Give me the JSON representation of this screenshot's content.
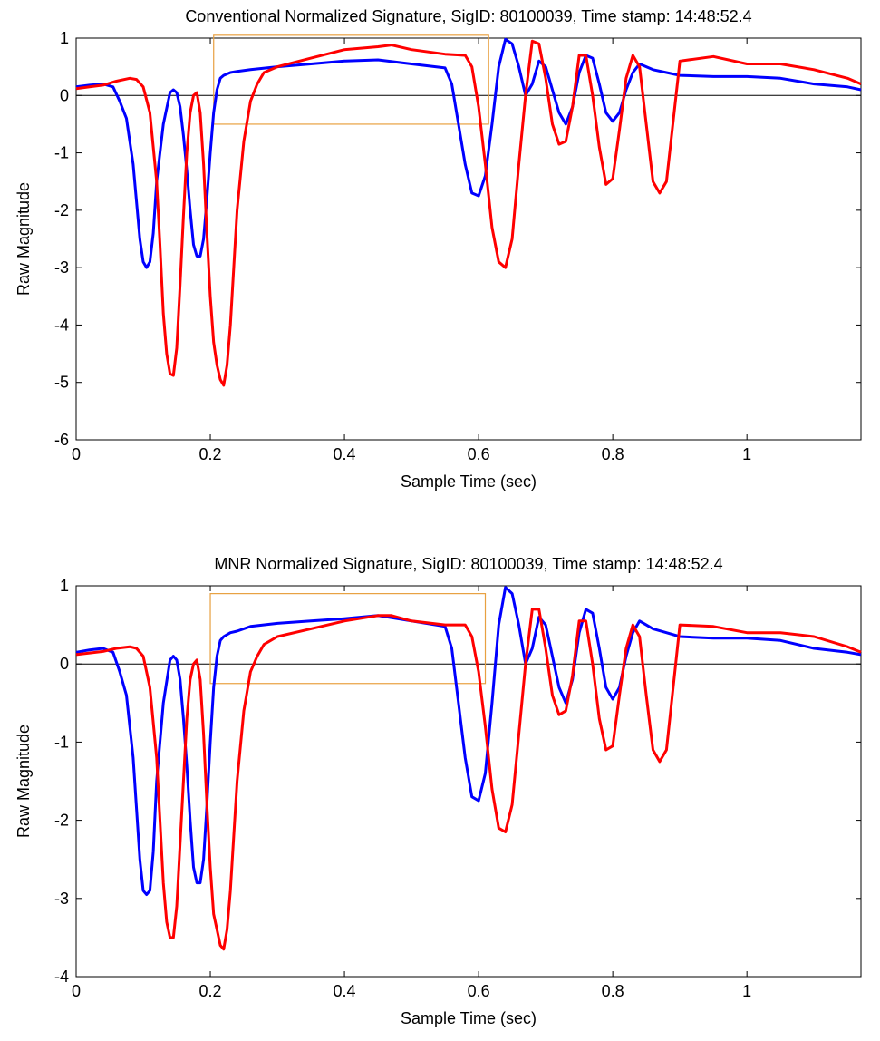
{
  "chart_data": [
    {
      "type": "line",
      "title": "Conventional Normalized Signature, SigID: 80100039, Time stamp: 14:48:52.4",
      "xlabel": "Sample Time (sec)",
      "ylabel": "Raw Magnitude",
      "xlim": [
        0,
        1.17
      ],
      "ylim": [
        -6,
        1
      ],
      "xticks": [
        0,
        0.2,
        0.4,
        0.6,
        0.8,
        1
      ],
      "xtick_labels": [
        "0",
        "0.2",
        "0.4",
        "0.6",
        "0.8",
        "1"
      ],
      "yticks": [
        -6,
        -5,
        -4,
        -3,
        -2,
        -1,
        0,
        1
      ],
      "ytick_labels": [
        "-6",
        "-5",
        "-4",
        "-3",
        "-2",
        "-1",
        "0",
        "1"
      ],
      "zero_line": true,
      "grid": false,
      "highlight_box": {
        "x0": 0.205,
        "x1": 0.615,
        "y0": -0.5,
        "y1": 1.05,
        "color": "#e8a040"
      },
      "series": [
        {
          "color": "#0000ff",
          "x": [
            0,
            0.02,
            0.04,
            0.055,
            0.065,
            0.075,
            0.085,
            0.095,
            0.1,
            0.105,
            0.11,
            0.115,
            0.12,
            0.13,
            0.14,
            0.145,
            0.15,
            0.155,
            0.16,
            0.165,
            0.17,
            0.175,
            0.18,
            0.185,
            0.19,
            0.195,
            0.2,
            0.205,
            0.21,
            0.215,
            0.22,
            0.23,
            0.24,
            0.26,
            0.3,
            0.35,
            0.4,
            0.45,
            0.5,
            0.55,
            0.56,
            0.57,
            0.58,
            0.59,
            0.6,
            0.61,
            0.62,
            0.63,
            0.64,
            0.65,
            0.66,
            0.67,
            0.68,
            0.69,
            0.7,
            0.71,
            0.72,
            0.73,
            0.74,
            0.75,
            0.76,
            0.77,
            0.78,
            0.79,
            0.8,
            0.81,
            0.82,
            0.83,
            0.84,
            0.85,
            0.86,
            0.88,
            0.9,
            0.95,
            1.0,
            1.05,
            1.1,
            1.15,
            1.17
          ],
          "y": [
            0.15,
            0.18,
            0.2,
            0.15,
            -0.1,
            -0.4,
            -1.2,
            -2.5,
            -2.9,
            -3.0,
            -2.9,
            -2.4,
            -1.5,
            -0.5,
            0.05,
            0.1,
            0.05,
            -0.2,
            -0.7,
            -1.3,
            -2.0,
            -2.6,
            -2.8,
            -2.8,
            -2.5,
            -1.8,
            -1.0,
            -0.3,
            0.1,
            0.3,
            0.35,
            0.4,
            0.42,
            0.45,
            0.5,
            0.55,
            0.6,
            0.62,
            0.55,
            0.48,
            0.2,
            -0.5,
            -1.2,
            -1.7,
            -1.75,
            -1.4,
            -0.5,
            0.5,
            0.98,
            0.9,
            0.5,
            0.0,
            0.2,
            0.6,
            0.5,
            0.1,
            -0.3,
            -0.5,
            -0.2,
            0.4,
            0.7,
            0.65,
            0.2,
            -0.3,
            -0.45,
            -0.3,
            0.1,
            0.4,
            0.55,
            0.5,
            0.45,
            0.4,
            0.35,
            0.33,
            0.33,
            0.3,
            0.2,
            0.15,
            0.1
          ]
        },
        {
          "color": "#ff0000",
          "x": [
            0,
            0.02,
            0.04,
            0.06,
            0.08,
            0.09,
            0.1,
            0.11,
            0.12,
            0.125,
            0.13,
            0.135,
            0.14,
            0.145,
            0.15,
            0.155,
            0.16,
            0.165,
            0.17,
            0.175,
            0.18,
            0.185,
            0.19,
            0.195,
            0.2,
            0.205,
            0.21,
            0.215,
            0.22,
            0.225,
            0.23,
            0.24,
            0.25,
            0.26,
            0.27,
            0.28,
            0.3,
            0.35,
            0.4,
            0.45,
            0.47,
            0.5,
            0.55,
            0.58,
            0.59,
            0.6,
            0.61,
            0.62,
            0.63,
            0.64,
            0.65,
            0.66,
            0.67,
            0.68,
            0.69,
            0.7,
            0.71,
            0.72,
            0.73,
            0.74,
            0.75,
            0.76,
            0.77,
            0.78,
            0.79,
            0.8,
            0.81,
            0.82,
            0.83,
            0.84,
            0.85,
            0.86,
            0.87,
            0.88,
            0.9,
            0.95,
            1.0,
            1.05,
            1.1,
            1.15,
            1.17
          ],
          "y": [
            0.12,
            0.15,
            0.18,
            0.25,
            0.3,
            0.28,
            0.15,
            -0.3,
            -1.5,
            -2.6,
            -3.8,
            -4.5,
            -4.85,
            -4.88,
            -4.4,
            -3.3,
            -2.1,
            -1.0,
            -0.3,
            0.0,
            0.05,
            -0.3,
            -1.2,
            -2.4,
            -3.5,
            -4.3,
            -4.7,
            -4.95,
            -5.05,
            -4.7,
            -4.0,
            -2.0,
            -0.8,
            -0.1,
            0.2,
            0.4,
            0.5,
            0.65,
            0.8,
            0.85,
            0.88,
            0.8,
            0.72,
            0.7,
            0.5,
            -0.2,
            -1.2,
            -2.3,
            -2.9,
            -3.0,
            -2.5,
            -1.2,
            0.0,
            0.95,
            0.9,
            0.3,
            -0.5,
            -0.85,
            -0.8,
            -0.2,
            0.7,
            0.7,
            0.0,
            -0.9,
            -1.55,
            -1.45,
            -0.6,
            0.3,
            0.7,
            0.5,
            -0.5,
            -1.5,
            -1.7,
            -1.5,
            0.6,
            0.68,
            0.55,
            0.55,
            0.45,
            0.3,
            0.2
          ]
        }
      ]
    },
    {
      "type": "line",
      "title": "MNR Normalized Signature, SigID: 80100039, Time stamp: 14:48:52.4",
      "xlabel": "Sample Time (sec)",
      "ylabel": "Raw Magnitude",
      "xlim": [
        0,
        1.17
      ],
      "ylim": [
        -4,
        1
      ],
      "xticks": [
        0,
        0.2,
        0.4,
        0.6,
        0.8,
        1
      ],
      "xtick_labels": [
        "0",
        "0.2",
        "0.4",
        "0.6",
        "0.8",
        "1"
      ],
      "yticks": [
        -4,
        -3,
        -2,
        -1,
        0,
        1
      ],
      "ytick_labels": [
        "-4",
        "-3",
        "-2",
        "-1",
        "0",
        "1"
      ],
      "zero_line": true,
      "grid": false,
      "highlight_box": {
        "x0": 0.2,
        "x1": 0.61,
        "y0": -0.25,
        "y1": 0.9,
        "color": "#e8a040"
      },
      "series": [
        {
          "color": "#0000ff",
          "x": [
            0,
            0.02,
            0.04,
            0.055,
            0.065,
            0.075,
            0.085,
            0.095,
            0.1,
            0.105,
            0.11,
            0.115,
            0.12,
            0.13,
            0.14,
            0.145,
            0.15,
            0.155,
            0.16,
            0.165,
            0.17,
            0.175,
            0.18,
            0.185,
            0.19,
            0.195,
            0.2,
            0.205,
            0.21,
            0.215,
            0.22,
            0.23,
            0.24,
            0.26,
            0.3,
            0.35,
            0.4,
            0.45,
            0.5,
            0.55,
            0.56,
            0.57,
            0.58,
            0.59,
            0.6,
            0.61,
            0.62,
            0.63,
            0.64,
            0.65,
            0.66,
            0.67,
            0.68,
            0.69,
            0.7,
            0.71,
            0.72,
            0.73,
            0.74,
            0.75,
            0.76,
            0.77,
            0.78,
            0.79,
            0.8,
            0.81,
            0.82,
            0.83,
            0.84,
            0.85,
            0.86,
            0.88,
            0.9,
            0.95,
            1.0,
            1.05,
            1.1,
            1.15,
            1.17
          ],
          "y": [
            0.15,
            0.18,
            0.2,
            0.15,
            -0.1,
            -0.4,
            -1.2,
            -2.5,
            -2.9,
            -2.95,
            -2.9,
            -2.4,
            -1.5,
            -0.5,
            0.05,
            0.1,
            0.05,
            -0.2,
            -0.7,
            -1.3,
            -2.0,
            -2.6,
            -2.8,
            -2.8,
            -2.5,
            -1.8,
            -1.0,
            -0.3,
            0.1,
            0.3,
            0.35,
            0.4,
            0.42,
            0.48,
            0.52,
            0.55,
            0.58,
            0.62,
            0.55,
            0.48,
            0.2,
            -0.5,
            -1.2,
            -1.7,
            -1.75,
            -1.4,
            -0.5,
            0.5,
            0.98,
            0.9,
            0.5,
            0.0,
            0.2,
            0.6,
            0.5,
            0.1,
            -0.3,
            -0.5,
            -0.2,
            0.4,
            0.7,
            0.65,
            0.2,
            -0.3,
            -0.45,
            -0.3,
            0.1,
            0.4,
            0.55,
            0.5,
            0.45,
            0.4,
            0.35,
            0.33,
            0.33,
            0.3,
            0.2,
            0.15,
            0.12
          ]
        },
        {
          "color": "#ff0000",
          "x": [
            0,
            0.02,
            0.04,
            0.06,
            0.08,
            0.09,
            0.1,
            0.11,
            0.12,
            0.125,
            0.13,
            0.135,
            0.14,
            0.145,
            0.15,
            0.155,
            0.16,
            0.165,
            0.17,
            0.175,
            0.18,
            0.185,
            0.19,
            0.195,
            0.2,
            0.205,
            0.21,
            0.215,
            0.22,
            0.225,
            0.23,
            0.24,
            0.25,
            0.26,
            0.27,
            0.28,
            0.3,
            0.35,
            0.4,
            0.45,
            0.47,
            0.5,
            0.55,
            0.58,
            0.59,
            0.6,
            0.61,
            0.62,
            0.63,
            0.64,
            0.65,
            0.66,
            0.67,
            0.68,
            0.69,
            0.7,
            0.71,
            0.72,
            0.73,
            0.74,
            0.75,
            0.76,
            0.77,
            0.78,
            0.79,
            0.8,
            0.81,
            0.82,
            0.83,
            0.84,
            0.85,
            0.86,
            0.87,
            0.88,
            0.9,
            0.95,
            1.0,
            1.05,
            1.1,
            1.15,
            1.17
          ],
          "y": [
            0.12,
            0.14,
            0.16,
            0.2,
            0.22,
            0.2,
            0.1,
            -0.3,
            -1.2,
            -2.0,
            -2.8,
            -3.3,
            -3.5,
            -3.5,
            -3.1,
            -2.3,
            -1.5,
            -0.7,
            -0.2,
            0.0,
            0.05,
            -0.2,
            -0.9,
            -1.8,
            -2.6,
            -3.2,
            -3.4,
            -3.6,
            -3.65,
            -3.4,
            -2.9,
            -1.5,
            -0.6,
            -0.1,
            0.1,
            0.25,
            0.35,
            0.45,
            0.55,
            0.62,
            0.62,
            0.55,
            0.5,
            0.5,
            0.35,
            -0.1,
            -0.8,
            -1.6,
            -2.1,
            -2.15,
            -1.8,
            -0.9,
            0.0,
            0.7,
            0.7,
            0.2,
            -0.4,
            -0.65,
            -0.6,
            -0.15,
            0.55,
            0.55,
            0.0,
            -0.7,
            -1.1,
            -1.05,
            -0.4,
            0.2,
            0.5,
            0.35,
            -0.4,
            -1.1,
            -1.25,
            -1.1,
            0.5,
            0.48,
            0.4,
            0.4,
            0.35,
            0.22,
            0.15
          ]
        }
      ]
    }
  ]
}
